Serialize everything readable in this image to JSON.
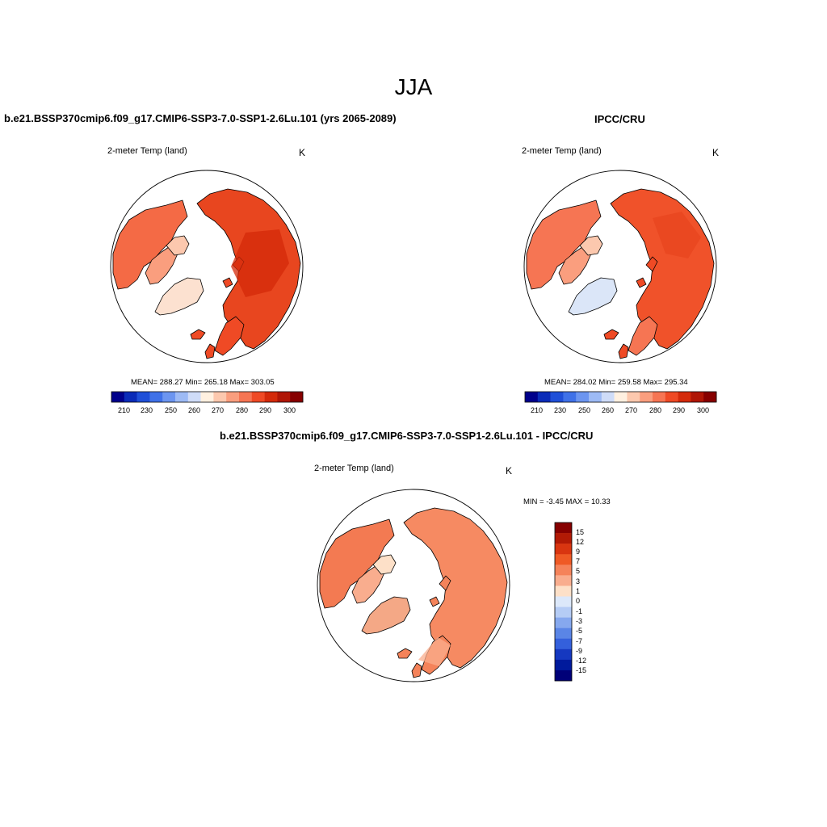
{
  "title": "JJA",
  "palette": {
    "abs": [
      "#00008b",
      "#0a2bb8",
      "#1f4fd8",
      "#3f71e8",
      "#6c95f0",
      "#9dbaf5",
      "#cfdcf8",
      "#fff0e0",
      "#fcc8ae",
      "#fa9e7e",
      "#f67553",
      "#ef4a25",
      "#d42a0a",
      "#b01606",
      "#870000"
    ],
    "diff": [
      "#860000",
      "#b21a05",
      "#d93510",
      "#ef5a25",
      "#f5835a",
      "#f9ad8e",
      "#fde0c8",
      "#dce8fa",
      "#b5ccf5",
      "#86a8ee",
      "#5a85e6",
      "#3460dc",
      "#1538c0",
      "#001a9c",
      "#000078"
    ]
  },
  "panels": [
    {
      "title": "b.e21.BSSP370cmip6.f09_g17.CMIP6-SSP3-7.0-SSP1-2.6Lu.101 (yrs 2065-2089)",
      "variable": "2-meter Temp (land)",
      "units": "K",
      "stats": "MEAN= 288.27  Min= 265.18  Max= 303.05",
      "colorbar_ticks": [
        "210",
        "230",
        "250",
        "260",
        "270",
        "280",
        "290",
        "300"
      ],
      "range": [
        265.18,
        303.05
      ]
    },
    {
      "title": "IPCC/CRU",
      "variable": "2-meter Temp (land)",
      "units": "K",
      "stats": "MEAN= 284.02  Min= 259.58  Max= 295.34",
      "colorbar_ticks": [
        "210",
        "230",
        "250",
        "260",
        "270",
        "280",
        "290",
        "300"
      ],
      "range": [
        259.58,
        295.34
      ]
    },
    {
      "title": "b.e21.BSSP370cmip6.f09_g17.CMIP6-SSP3-7.0-SSP1-2.6Lu.101 - IPCC/CRU",
      "variable": "2-meter Temp (land)",
      "units": "K",
      "stats": "MIN =  -3.45 MAX =  10.33",
      "colorbar_ticks": [
        "15",
        "12",
        "9",
        "7",
        "5",
        "3",
        "1",
        "0",
        "-1",
        "-3",
        "-5",
        "-7",
        "-9",
        "-12",
        "-15"
      ],
      "range": [
        -3.45,
        10.33
      ]
    }
  ]
}
